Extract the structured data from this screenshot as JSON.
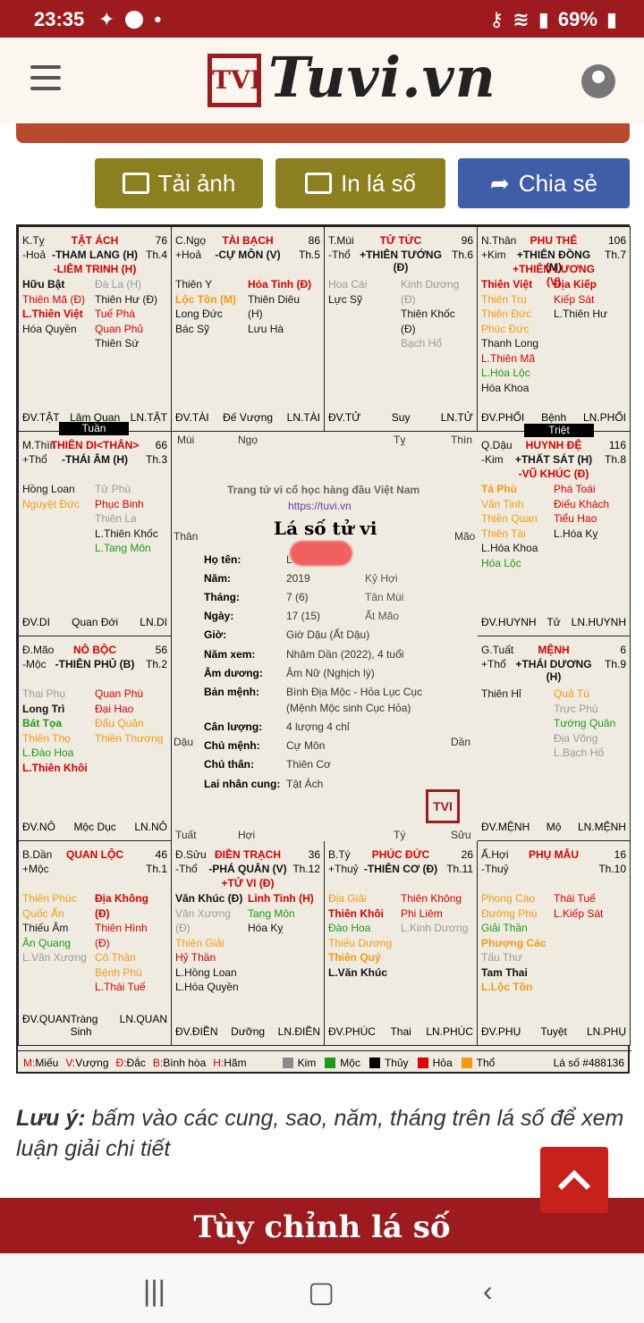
{
  "status": {
    "time": "23:35",
    "battery": "69%"
  },
  "header": {
    "logo_text": "Tuvi.vn",
    "logo_mark": "TVI"
  },
  "buttons": {
    "save_img": "Tải ảnh",
    "print": "In lá số",
    "share": "Chia sẻ"
  },
  "cells": [
    {
      "pos": "K.Tỵ",
      "el": "-Hoả",
      "name": "TẬT ÁCH",
      "num": "76",
      "th": "Th.4",
      "main": "-THAM LANG (H)",
      "main2": "-LIÊM TRINH (H)",
      "left": [
        [
          "Hữu Bật",
          "blkt b"
        ],
        [
          "Thiên Mã (Đ)",
          "red"
        ],
        [
          "L.Thiên Việt",
          "red b"
        ],
        [
          "Hóa Quyền",
          "blkt"
        ]
      ],
      "right": [
        [
          "Đà La (H)",
          "gry"
        ],
        [
          "Thiên Hư (Đ)",
          "blkt"
        ],
        [
          "Tuế Phá",
          "red"
        ],
        [
          "Quan Phủ",
          "red"
        ],
        [
          "Thiên Sứ",
          "blkt"
        ]
      ],
      "f1": "ĐV.TẬT",
      "f2": "Lâm Quan",
      "f3": "LN.TẬT"
    },
    {
      "pos": "C.Ngọ",
      "el": "+Hoả",
      "name": "TÀI BẠCH",
      "num": "86",
      "th": "Th.5",
      "main": "-CỰ MÔN (V)",
      "main2": "",
      "left": [
        [
          "Thiên Y",
          "blkt"
        ],
        [
          "Lộc Tồn (M)",
          "org b"
        ],
        [
          "Long Đức",
          "blkt"
        ],
        [
          "Bác Sỹ",
          "blkt"
        ]
      ],
      "right": [
        [
          "Hỏa Tinh (Đ)",
          "red b"
        ],
        [
          "Thiên Diêu (H)",
          "blkt"
        ],
        [
          "Lưu Hà",
          "blkt"
        ]
      ],
      "f1": "ĐV.TÀI",
      "f2": "Đế Vượng",
      "f3": "LN.TÀI"
    },
    {
      "pos": "T.Mùi",
      "el": "-Thổ",
      "name": "TỬ TỨC",
      "num": "96",
      "th": "Th.6",
      "main": "+THIÊN TƯỚNG (Đ)",
      "main2": "",
      "left": [
        [
          "Hoa Cái",
          "gry"
        ],
        [
          "Lực Sỹ",
          "blkt"
        ]
      ],
      "right": [
        [
          "Kinh Dương (Đ)",
          "gry"
        ],
        [
          "Thiên Khốc (Đ)",
          "blkt"
        ],
        [
          "Bạch Hổ",
          "gry"
        ]
      ],
      "f1": "ĐV.TỬ",
      "f2": "Suy",
      "f3": "LN.TỬ"
    },
    {
      "pos": "N.Thân",
      "el": "+Kim",
      "name": "PHU THÊ",
      "num": "106",
      "th": "Th.7",
      "main": "+THIÊN ĐỒNG (M)",
      "main2": "+THIÊN LƯƠNG (V)",
      "left": [
        [
          "Thiên Việt",
          "red b"
        ],
        [
          "Thiên Trù",
          "org"
        ],
        [
          "Thiên Đức",
          "org"
        ],
        [
          "Phúc Đức",
          "org"
        ],
        [
          "Thanh Long",
          "blkt"
        ],
        [
          "L.Thiên Mã",
          "red"
        ],
        [
          "L.Hóa Lộc",
          "grn"
        ],
        [
          "Hóa Khoa",
          "blkt"
        ]
      ],
      "right": [
        [
          "Địa Kiếp",
          "red b"
        ],
        [
          "Kiếp Sát",
          "red"
        ],
        [
          "L.Thiên Hư",
          "blkt"
        ]
      ],
      "f1": "ĐV.PHỐI",
      "f2": "Bệnh",
      "f3": "LN.PHỐI"
    },
    {
      "pos": "M.Thìn",
      "el": "+Thổ",
      "name": "THIÊN DI<THÂN>",
      "num": "66",
      "th": "Th.3",
      "main": "-THÁI ÂM (H)",
      "main2": "",
      "left": [
        [
          "Hồng Loan",
          "blkt"
        ],
        [
          "Nguyệt Đức",
          "org"
        ]
      ],
      "right": [
        [
          "Tử Phù",
          "gry"
        ],
        [
          "Phục Binh",
          "red"
        ],
        [
          "Thiên La",
          "gry"
        ],
        [
          "L.Thiên Khốc",
          "blkt"
        ],
        [
          "L.Tang Môn",
          "grn"
        ]
      ],
      "f1": "ĐV.DI",
      "f2": "Quan Đới",
      "f3": "LN.DI"
    },
    {
      "pos": "Q.Dậu",
      "el": "-Kim",
      "name": "HUYNH ĐỆ",
      "num": "116",
      "th": "Th.8",
      "main": "+THẤT SÁT (H)",
      "main2": "-VŨ KHÚC (Đ)",
      "left": [
        [
          "Tả Phù",
          "org b"
        ],
        [
          "Văn Tinh",
          "org"
        ],
        [
          "Thiên Quan",
          "org"
        ],
        [
          "Thiên Tài",
          "org"
        ],
        [
          "L.Hóa Khoa",
          "blkt"
        ],
        [
          "Hóa Lộc",
          "grn"
        ]
      ],
      "right": [
        [
          "Phá Toái",
          "red"
        ],
        [
          "Điếu Khách",
          "red"
        ],
        [
          "Tiểu Hao",
          "red"
        ],
        [
          "L.Hóa Kỵ",
          "blkt"
        ]
      ],
      "f1": "ĐV.HUYNH",
      "f2": "Tử",
      "f3": "LN.HUYNH"
    },
    {
      "pos": "Đ.Mão",
      "el": "-Mộc",
      "name": "NÔ BỘC",
      "num": "56",
      "th": "Th.2",
      "main": "-THIÊN PHỦ (B)",
      "main2": "",
      "left": [
        [
          "Thai Phụ",
          "gry"
        ],
        [
          "Long Trì",
          "blkt b"
        ],
        [
          "Bát Tọa",
          "grn b"
        ],
        [
          "Thiên Thọ",
          "org"
        ],
        [
          "L.Đào Hoa",
          "grn"
        ],
        [
          "L.Thiên Khôi",
          "red b"
        ]
      ],
      "right": [
        [
          "Quan Phù",
          "red"
        ],
        [
          "Đại Hao",
          "red"
        ],
        [
          "Đẩu Quân",
          "org"
        ],
        [
          "Thiên Thương",
          "org"
        ]
      ],
      "f1": "ĐV.NÔ",
      "f2": "Mộc Dục",
      "f3": "LN.NÔ"
    },
    {
      "pos": "G.Tuất",
      "el": "+Thổ",
      "name": "MỆNH",
      "num": "6",
      "th": "Th.9",
      "main": "+THÁI DƯƠNG (H)",
      "main2": "",
      "left": [
        [
          "Thiên Hỉ",
          "blkt"
        ]
      ],
      "right": [
        [
          "Quả Tú",
          "org"
        ],
        [
          "Trực Phù",
          "gry"
        ],
        [
          "Tướng Quân",
          "grn"
        ],
        [
          "Địa Võng",
          "gry"
        ],
        [
          "L.Bạch Hổ",
          "gry"
        ]
      ],
      "f1": "ĐV.MỆNH",
      "f2": "Mộ",
      "f3": "LN.MỆNH"
    },
    {
      "pos": "B.Dần",
      "el": "+Mộc",
      "name": "QUAN LỘC",
      "num": "46",
      "th": "Th.1",
      "main": "",
      "main2": "",
      "left": [
        [
          "Thiên Phúc",
          "org"
        ],
        [
          "Quốc Ấn",
          "org"
        ],
        [
          "Thiếu Âm",
          "blkt"
        ],
        [
          "Ân Quang",
          "grn"
        ],
        [
          "L.Văn Xương",
          "gry"
        ]
      ],
      "right": [
        [
          "Địa Không (Đ)",
          "red b"
        ],
        [
          "Thiên Hình (Đ)",
          "red"
        ],
        [
          "Cô Thần",
          "org"
        ],
        [
          "Bệnh Phù",
          "org"
        ],
        [
          "L.Thái Tuế",
          "red"
        ]
      ],
      "f1": "ĐV.QUAN",
      "f2": "Tràng Sinh",
      "f3": "LN.QUAN"
    },
    {
      "pos": "Đ.Sửu",
      "el": "-Thổ",
      "name": "ĐIỀN TRẠCH",
      "num": "36",
      "th": "Th.12",
      "main": "-PHÁ QUÂN (V)",
      "main2": "+TỬ VI (Đ)",
      "left": [
        [
          "Văn Khúc (Đ)",
          "blkt b"
        ],
        [
          "Văn Xương (Đ)",
          "gry"
        ],
        [
          "Thiên Giải",
          "org"
        ],
        [
          "Hỷ Thần",
          "red"
        ],
        [
          "L.Hồng Loan",
          "blkt"
        ],
        [
          "L.Hóa Quyền",
          "blkt"
        ]
      ],
      "right": [
        [
          "Linh Tinh (H)",
          "red b"
        ],
        [
          "Tang Môn",
          "grn"
        ],
        [
          "Hóa Kỵ",
          "blkt"
        ]
      ],
      "f1": "ĐV.ĐIỀN",
      "f2": "Dưỡng",
      "f3": "LN.ĐIỀN"
    },
    {
      "pos": "B.Tý",
      "el": "+Thuỷ",
      "name": "PHÚC ĐỨC",
      "num": "26",
      "th": "Th.11",
      "main": "-THIÊN CƠ (Đ)",
      "main2": "",
      "left": [
        [
          "Địa Giải",
          "org"
        ],
        [
          "Thiên Khôi",
          "red b"
        ],
        [
          "Đào Hoa",
          "grn"
        ],
        [
          "Thiếu Dương",
          "org"
        ],
        [
          "Thiên Quý",
          "org b"
        ],
        [
          "L.Văn Khúc",
          "blkt b"
        ]
      ],
      "right": [
        [
          "Thiên Không",
          "red"
        ],
        [
          "Phi Liêm",
          "red"
        ],
        [
          "L.Kinh Dương",
          "gry"
        ]
      ],
      "f1": "ĐV.PHÚC",
      "f2": "Thai",
      "f3": "LN.PHÚC"
    },
    {
      "pos": "Ấ.Hợi",
      "el": "-Thuỷ",
      "name": "PHỤ MẪU",
      "num": "16",
      "th": "Th.10",
      "main": "",
      "main2": "",
      "left": [
        [
          "Phong Cáo",
          "org"
        ],
        [
          "Đường Phù",
          "org"
        ],
        [
          "Giải Thần",
          "grn"
        ],
        [
          "Phượng Các",
          "org b"
        ],
        [
          "Tấu Thư",
          "gry"
        ],
        [
          "Tam Thai",
          "blkt b"
        ],
        [
          "L.Lộc Tồn",
          "org b"
        ]
      ],
      "right": [
        [
          "Thái Tuế",
          "red"
        ],
        [
          "L.Kiếp Sát",
          "red"
        ]
      ],
      "f1": "ĐV.PHỤ",
      "f2": "Tuyệt",
      "f3": "LN.PHỤ"
    }
  ],
  "tuan_label": "Tuần",
  "triet_label": "Triệt",
  "center": {
    "site": "Trang tử vi cổ học hàng đầu Việt Nam",
    "url": "https://tuvi.vn",
    "title": "Lá số tử vi",
    "rows": [
      [
        "Họ tên:",
        "L"
      ],
      [
        "Năm:",
        "2019"
      ],
      [
        "Tháng:",
        "7 (6)"
      ],
      [
        "Ngày:",
        "17 (15)"
      ],
      [
        "Giờ:",
        "Giờ Dậu (Ất Dậu)"
      ],
      [
        "Năm xem:",
        "Nhâm Dần (2022), 4 tuổi"
      ],
      [
        "Âm dương:",
        "Âm Nữ (Nghịch lý)"
      ],
      [
        "Bản mệnh:",
        "Bình Địa Mộc - Hỏa Lục Cục"
      ],
      [
        "",
        "(Mệnh Mộc sinh Cục Hỏa)"
      ],
      [
        "Cân lượng:",
        "4 lượng 4 chỉ"
      ],
      [
        "Chủ mệnh:",
        "Cự Môn"
      ],
      [
        "Chủ thân:",
        "Thiên Cơ"
      ],
      [
        "Lai nhân cung:",
        "Tật Ách"
      ]
    ],
    "can_year": "Kỷ Hợi",
    "can_month": "Tân Mùi",
    "can_day": "Ất Mão",
    "dirs": [
      "Mùi",
      "Ngọ",
      "Tỵ",
      "Thìn",
      "Thân",
      "Mão",
      "Dậu",
      "Dần",
      "Tuất",
      "Hợi",
      "Tý",
      "Sửu"
    ]
  },
  "legend": {
    "l1": "M:",
    "t1": "Miếu",
    "l2": "V:",
    "t2": "Vượng",
    "l3": "Đ:",
    "t3": "Đắc",
    "l4": "B:",
    "t4": "Bình hòa",
    "l5": "H:",
    "t5": "Hãm",
    "kim": "Kim",
    "moc": "Mộc",
    "thuy": "Thủy",
    "hoa": "Hỏa",
    "tho": "Thổ",
    "id": "Lá số #488136"
  },
  "note": {
    "bold": "Lưu ý:",
    "text": " bấm vào các cung, sao, năm, tháng trên lá số để xem luận giải chi tiết"
  },
  "banner": "Tùy chỉnh lá số"
}
